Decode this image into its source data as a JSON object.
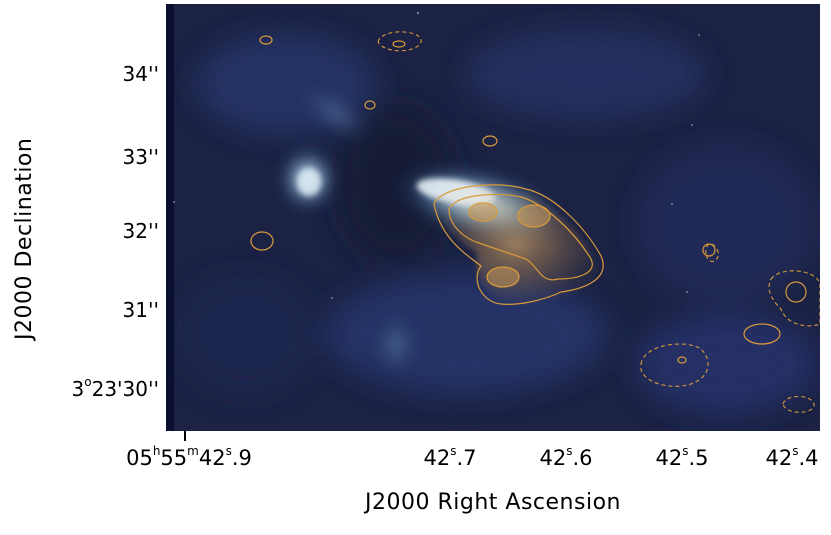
{
  "figure": {
    "x_axis_title": "J2000 Right Ascension",
    "y_axis_title": "J2000 Declination",
    "ra_ticks": [
      {
        "h": "05",
        "m": "55",
        "s_int": "42",
        "s_frac": ".9",
        "full": true
      },
      {
        "s_int": "42",
        "s_frac": ".7"
      },
      {
        "s_int": "42",
        "s_frac": ".6"
      },
      {
        "s_int": "42",
        "s_frac": ".5"
      },
      {
        "s_int": "42",
        "s_frac": ".4"
      }
    ],
    "dec_ticks": [
      {
        "label": "34''"
      },
      {
        "label": "33''"
      },
      {
        "label": "32''"
      },
      {
        "label": "31''"
      },
      {
        "deg": "3",
        "min": "23'",
        "sec": "30''",
        "full": true
      }
    ],
    "colors": {
      "background_dark": "#1a2040",
      "emission_light": "#cfe6f2",
      "emission_mid": "#4a7fb0",
      "contour": "#d99a3a",
      "contour_fill": "#b8874a"
    }
  }
}
